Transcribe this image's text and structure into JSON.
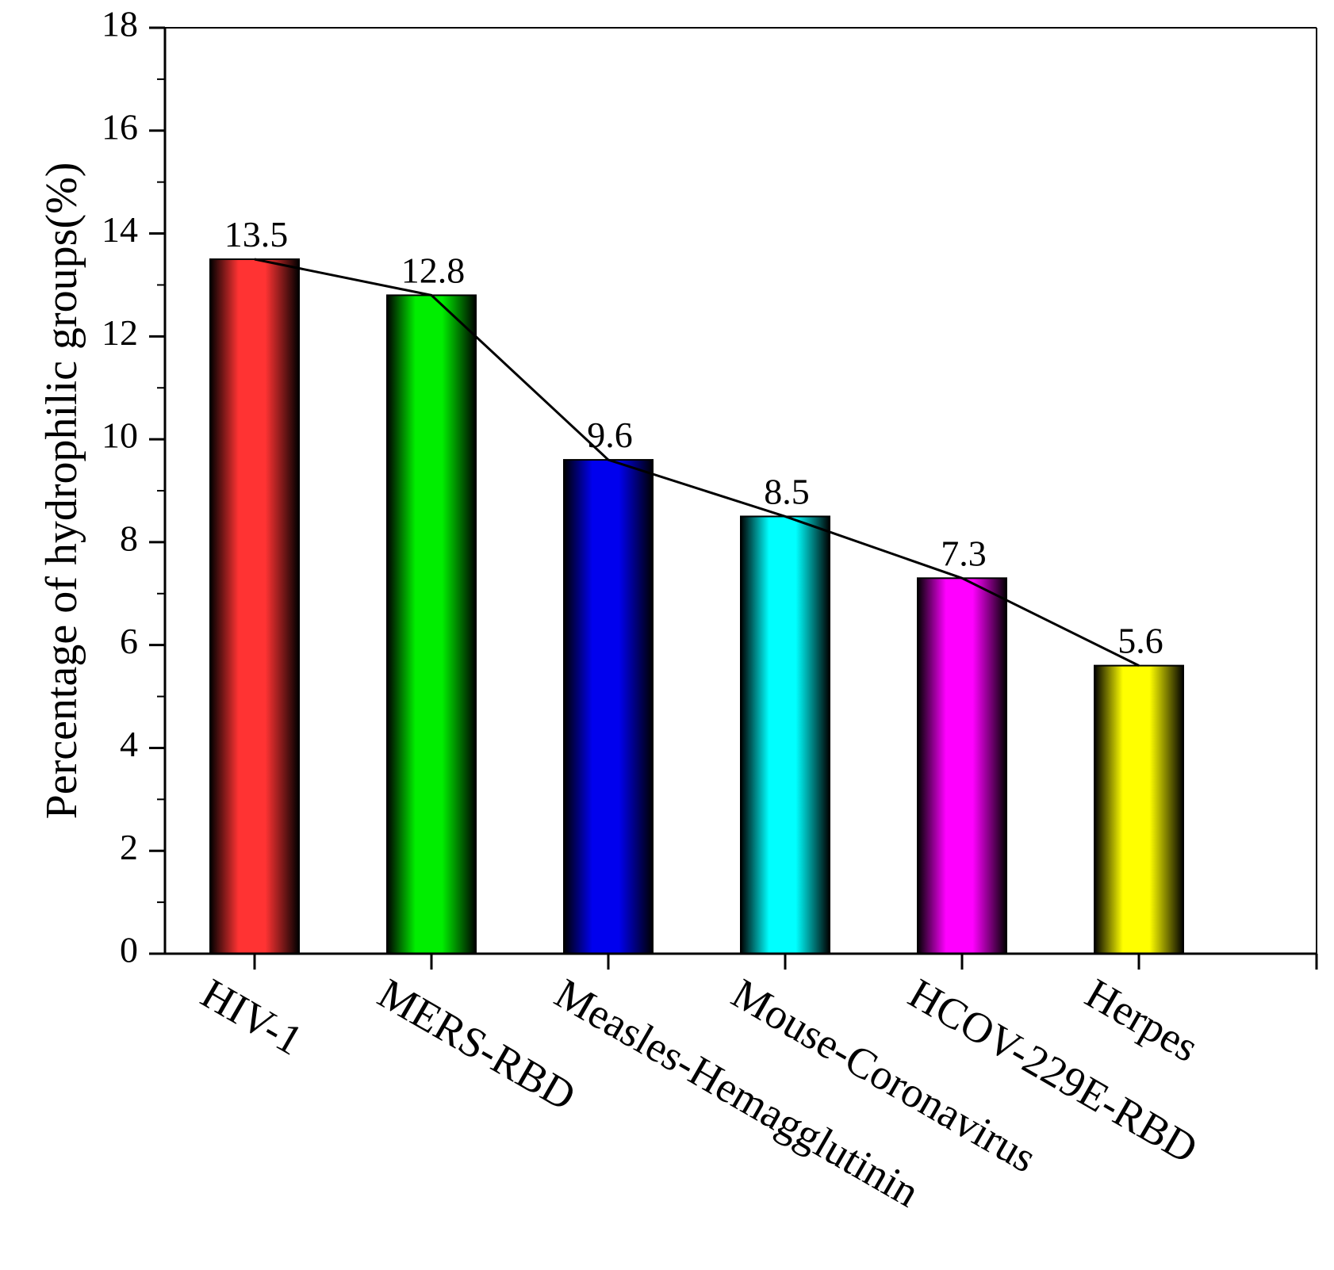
{
  "chart_data": {
    "type": "bar",
    "title": "",
    "xlabel": "",
    "ylabel": "Percentage of hydrophilic groups(%)",
    "ylim": [
      0,
      18
    ],
    "yticks": [
      0,
      2,
      4,
      6,
      8,
      10,
      12,
      14,
      16,
      18
    ],
    "yticks_labels": [
      "0",
      "2",
      "4",
      "6",
      "8",
      "10",
      "12",
      "14",
      "16",
      "18"
    ],
    "categories": [
      "HIV-1",
      "MERS-RBD",
      "Measles-Hemagglutinin",
      "Mouse-Coronavirus",
      "HCOV-229E-RBD",
      "Herpes"
    ],
    "values": [
      13.5,
      12.8,
      9.6,
      8.5,
      7.3,
      5.6
    ],
    "value_labels": [
      "13.5",
      "12.8",
      "9.6",
      "8.5",
      "7.3",
      "5.6"
    ],
    "bar_colors": [
      "#ff3333",
      "#00ee00",
      "#0000ee",
      "#00ffff",
      "#ff00ff",
      "#ffff00"
    ],
    "connecting_line": true,
    "grid": false
  }
}
